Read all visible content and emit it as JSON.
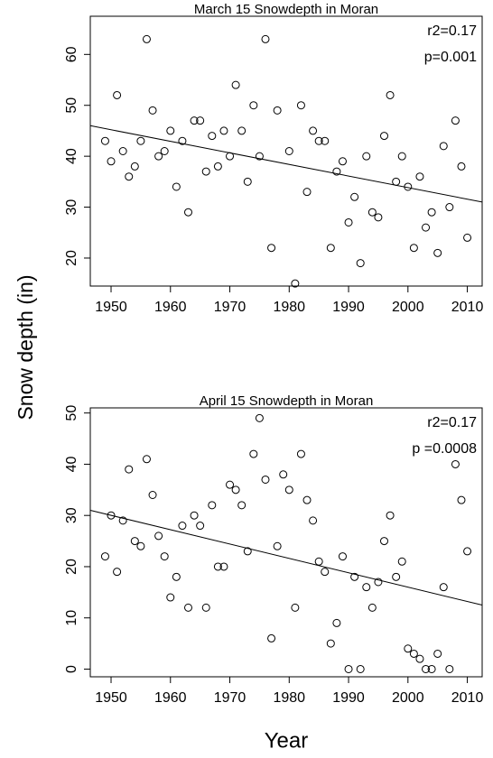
{
  "chart_data": [
    {
      "type": "scatter",
      "title": "March 15 Snowdepth in Moran",
      "ylabel": "Snow depth (in)",
      "annotations": [
        "r2=0.17",
        "p=0.001"
      ],
      "x": [
        1949,
        1950,
        1951,
        1952,
        1953,
        1954,
        1955,
        1956,
        1957,
        1958,
        1959,
        1960,
        1961,
        1962,
        1963,
        1964,
        1965,
        1966,
        1967,
        1968,
        1969,
        1970,
        1971,
        1972,
        1973,
        1974,
        1975,
        1976,
        1977,
        1978,
        1980,
        1981,
        1982,
        1983,
        1984,
        1985,
        1986,
        1987,
        1988,
        1989,
        1990,
        1991,
        1992,
        1993,
        1994,
        1995,
        1996,
        1997,
        1998,
        1999,
        2000,
        2001,
        2002,
        2003,
        2004,
        2005,
        2006,
        2007,
        2008,
        2009,
        2010
      ],
      "values": [
        43,
        39,
        52,
        41,
        36,
        38,
        43,
        63,
        49,
        40,
        41,
        45,
        34,
        43,
        29,
        47,
        47,
        37,
        44,
        38,
        45,
        40,
        54,
        45,
        35,
        50,
        40,
        63,
        22,
        49,
        41,
        15,
        50,
        33,
        45,
        43,
        43,
        22,
        37,
        39,
        27,
        32,
        19,
        40,
        29,
        28,
        44,
        52,
        35,
        40,
        34,
        22,
        36,
        26,
        29,
        21,
        42,
        30,
        47,
        38,
        24
      ],
      "fit": {
        "x": [
          1946.5,
          2012.5
        ],
        "y": [
          46,
          31
        ]
      },
      "xlim": [
        1946.5,
        2012.5
      ],
      "xticks": [
        1950,
        1960,
        1970,
        1980,
        1990,
        2000,
        2010
      ],
      "ylim": [
        14.5,
        67.5
      ],
      "yticks": [
        20,
        30,
        40,
        50,
        60
      ],
      "color": "#000000"
    },
    {
      "type": "scatter",
      "title": "April 15 Snowdepth in Moran",
      "xlabel": "Year",
      "annotations": [
        "r2=0.17",
        "p =0.0008"
      ],
      "x": [
        1949,
        1950,
        1951,
        1952,
        1953,
        1954,
        1955,
        1956,
        1957,
        1958,
        1959,
        1960,
        1961,
        1962,
        1963,
        1964,
        1965,
        1966,
        1967,
        1968,
        1969,
        1970,
        1971,
        1972,
        1973,
        1974,
        1975,
        1976,
        1977,
        1978,
        1979,
        1980,
        1981,
        1982,
        1983,
        1984,
        1985,
        1986,
        1987,
        1988,
        1989,
        1990,
        1991,
        1992,
        1993,
        1994,
        1995,
        1996,
        1997,
        1998,
        1999,
        2000,
        2001,
        2002,
        2003,
        2004,
        2005,
        2006,
        2007,
        2008,
        2009,
        2010
      ],
      "values": [
        22,
        30,
        19,
        29,
        39,
        25,
        24,
        41,
        34,
        26,
        22,
        14,
        18,
        28,
        12,
        30,
        28,
        12,
        32,
        20,
        20,
        36,
        35,
        32,
        23,
        42,
        49,
        37,
        6,
        24,
        38,
        35,
        12,
        42,
        33,
        29,
        21,
        19,
        5,
        9,
        22,
        0,
        18,
        0,
        16,
        12,
        17,
        25,
        30,
        18,
        21,
        4,
        3,
        2,
        0,
        0,
        3,
        16,
        0,
        40,
        33,
        23
      ],
      "fit": {
        "x": [
          1946.5,
          2012.5
        ],
        "y": [
          31,
          12.5
        ]
      },
      "xlim": [
        1946.5,
        2012.5
      ],
      "xticks": [
        1950,
        1960,
        1970,
        1980,
        1990,
        2000,
        2010
      ],
      "ylim": [
        -1.5,
        51
      ],
      "yticks": [
        0,
        10,
        20,
        30,
        40,
        50
      ],
      "color": "#000000"
    }
  ]
}
